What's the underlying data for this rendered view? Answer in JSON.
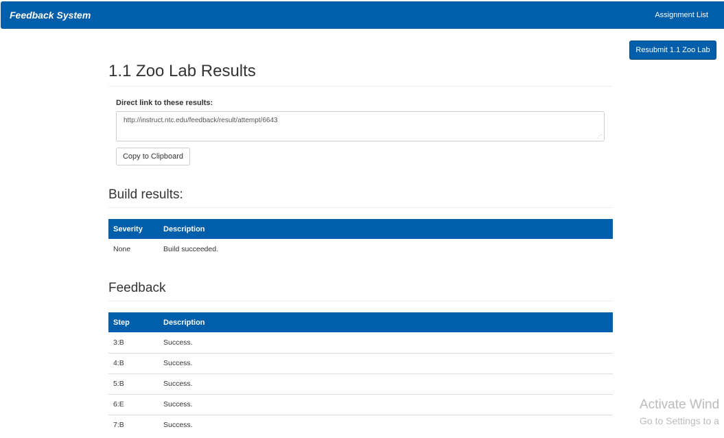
{
  "navbar": {
    "brand": "Feedback System",
    "assignment_list": "Assignment List"
  },
  "resubmit_label": "Resubmit 1.1 Zoo Lab",
  "page_title": "1.1 Zoo Lab Results",
  "direct_link": {
    "label": "Direct link to these results:",
    "value": "http://instruct.ntc.edu/feedback/result/attempt/6643",
    "copy_label": "Copy to Clipboard"
  },
  "build": {
    "heading": "Build results:",
    "columns": [
      "Severity",
      "Description"
    ],
    "rows": [
      [
        "None",
        "Build succeeded."
      ]
    ]
  },
  "feedback": {
    "heading": "Feedback",
    "columns": [
      "Step",
      "Description"
    ],
    "rows": [
      [
        "3:B",
        "Success."
      ],
      [
        "4:B",
        "Success."
      ],
      [
        "5:B",
        "Success."
      ],
      [
        "6:E",
        "Success."
      ],
      [
        "7:B",
        "Success."
      ]
    ]
  },
  "watermark": {
    "line1": "Activate Wind",
    "line2": "Go to Settings to a"
  },
  "colors": {
    "primary": "#005eaa"
  }
}
